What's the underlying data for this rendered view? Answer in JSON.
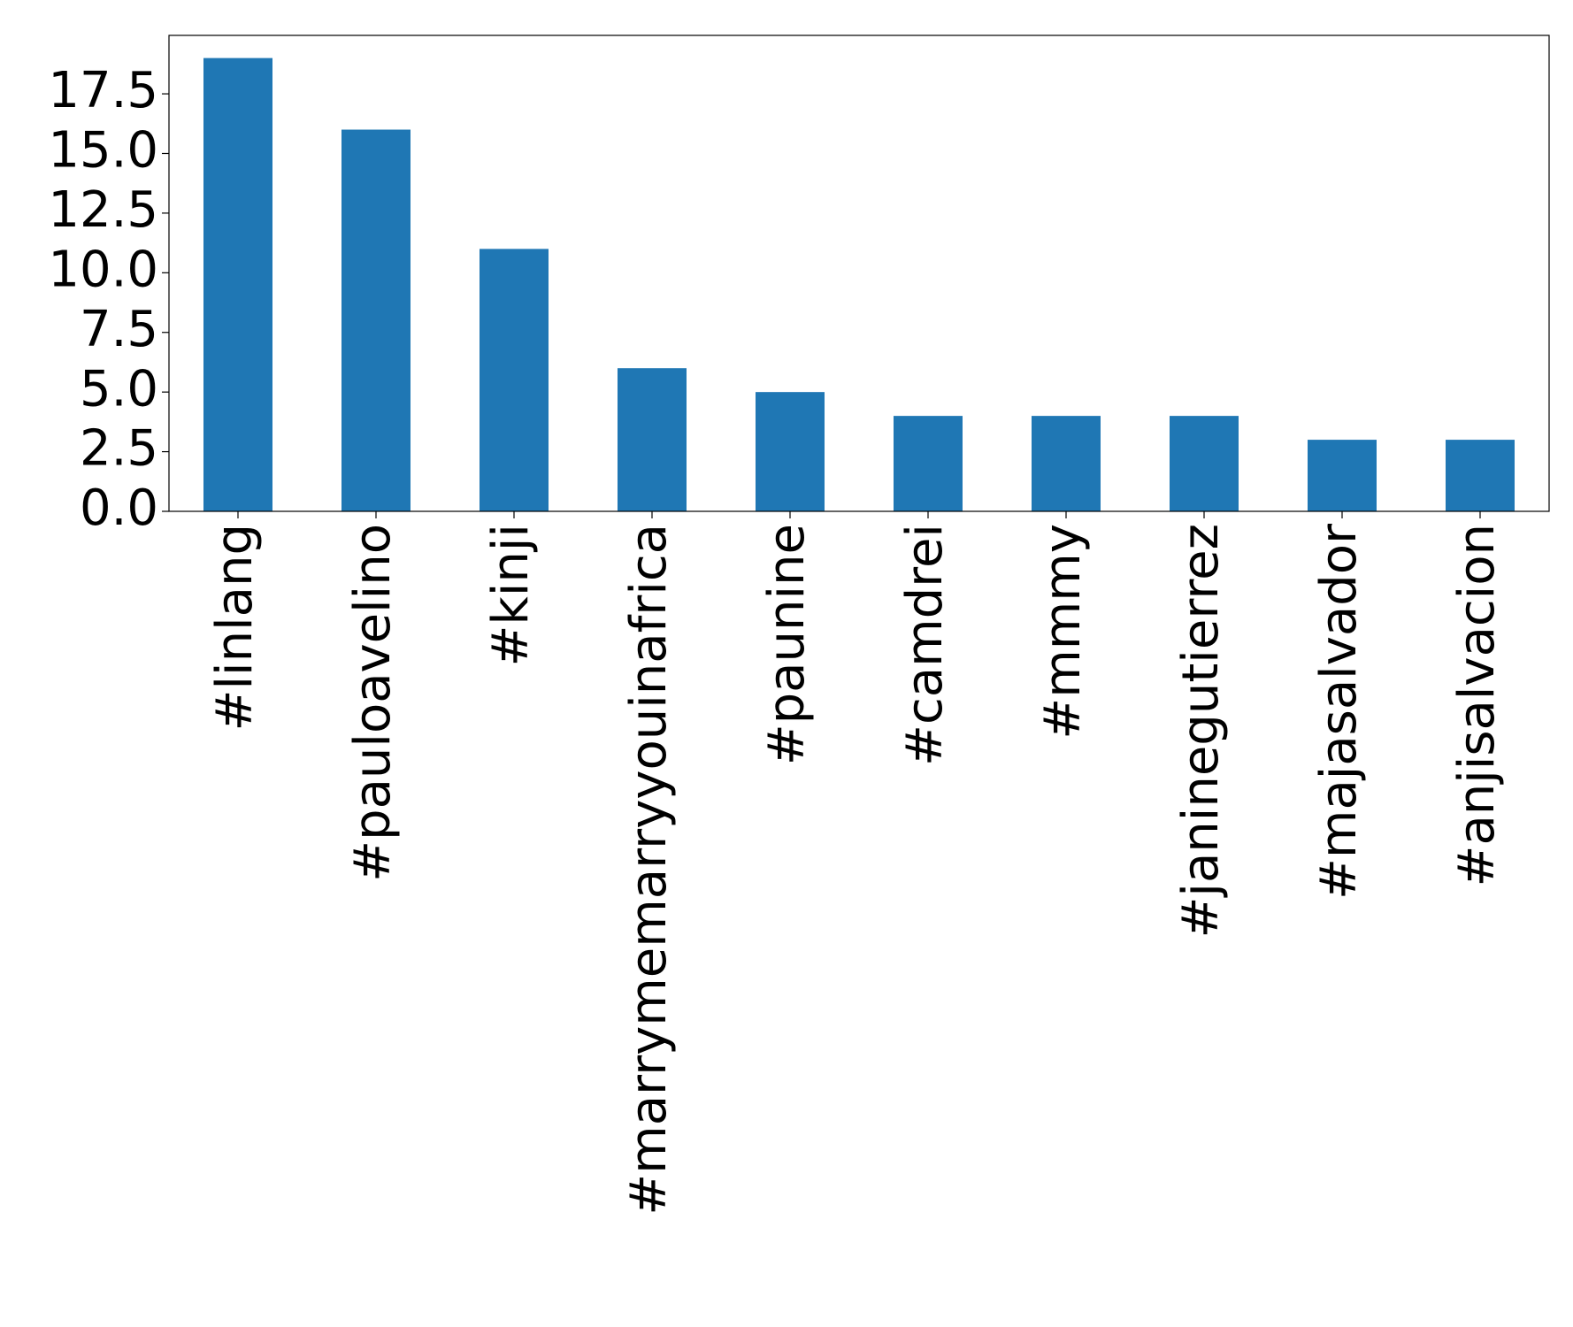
{
  "chart_data": {
    "type": "bar",
    "categories": [
      "#linlang",
      "#pauloavelino",
      "#kinji",
      "#marrymemarryyouinafrica",
      "#paunine",
      "#camdrei",
      "#mmmy",
      "#janinegutierrez",
      "#majasalvador",
      "#anjisalvacion"
    ],
    "values": [
      19,
      16,
      11,
      6,
      5,
      4,
      4,
      4,
      3,
      3
    ],
    "color": "#1f77b4",
    "ylim": [
      0,
      19.95
    ],
    "yticks": [
      {
        "value": 0,
        "label": "0.0"
      },
      2.5,
      {
        "value": 5,
        "label": "5.0"
      },
      7.5,
      {
        "value": 10,
        "label": "10.0"
      },
      12.5,
      {
        "value": 15,
        "label": "15.0"
      },
      17.5
    ],
    "grid": false
  }
}
